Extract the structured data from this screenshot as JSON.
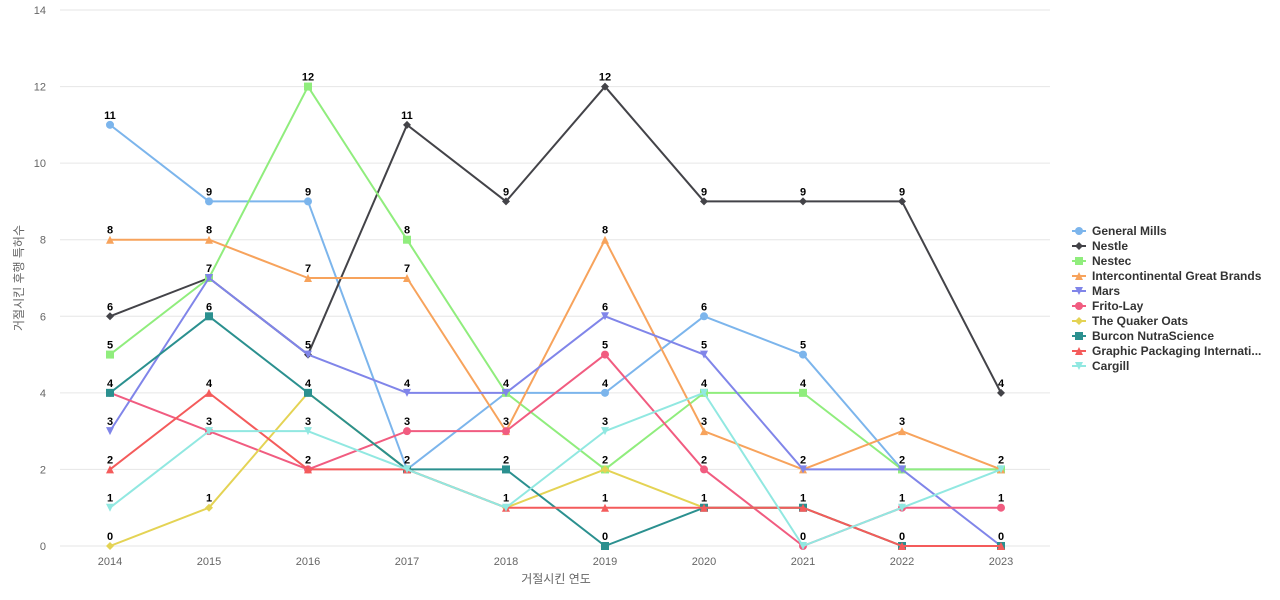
{
  "chart_data": {
    "type": "line",
    "title": "",
    "xlabel": "거절시킨 연도",
    "ylabel": "거절시킨 후행 특허수",
    "ylim": [
      0,
      14
    ],
    "y_ticks": [
      0,
      2,
      4,
      6,
      8,
      10,
      12,
      14
    ],
    "grid": true,
    "legend_position": "right",
    "x": [
      "2014",
      "2015",
      "2016",
      "2017",
      "2018",
      "2019",
      "2020",
      "2021",
      "2022",
      "2023"
    ],
    "series": [
      {
        "name": "General Mills",
        "color": "#7cb5ec",
        "marker": "circle",
        "values": [
          11,
          9,
          9,
          2,
          4,
          4,
          6,
          5,
          2,
          2
        ]
      },
      {
        "name": "Nestle",
        "color": "#434348",
        "marker": "diamond",
        "values": [
          6,
          7,
          5,
          11,
          9,
          12,
          9,
          9,
          9,
          4
        ]
      },
      {
        "name": "Nestec",
        "color": "#90ed7d",
        "marker": "square",
        "values": [
          5,
          7,
          12,
          8,
          4,
          2,
          4,
          4,
          2,
          2
        ]
      },
      {
        "name": "Intercontinental Great Brands",
        "color": "#f7a35c",
        "marker": "triangle",
        "values": [
          8,
          8,
          7,
          7,
          3,
          8,
          3,
          2,
          3,
          2
        ]
      },
      {
        "name": "Mars",
        "color": "#8085e9",
        "marker": "triangle-down",
        "values": [
          3,
          7,
          5,
          4,
          4,
          6,
          5,
          2,
          2,
          0
        ]
      },
      {
        "name": "Frito-Lay",
        "color": "#f15c80",
        "marker": "circle",
        "values": [
          4,
          3,
          2,
          3,
          3,
          5,
          2,
          0,
          1,
          1
        ]
      },
      {
        "name": "The Quaker Oats",
        "color": "#e4d354",
        "marker": "diamond",
        "values": [
          0,
          1,
          4,
          2,
          1,
          2,
          1,
          1,
          0,
          0
        ]
      },
      {
        "name": "Burcon NutraScience",
        "color": "#2b908f",
        "marker": "square",
        "values": [
          4,
          6,
          4,
          2,
          2,
          0,
          1,
          1,
          0,
          0
        ]
      },
      {
        "name": "Graphic Packaging Internati...",
        "color": "#f45b5b",
        "marker": "triangle",
        "values": [
          2,
          4,
          2,
          2,
          1,
          1,
          1,
          1,
          0,
          0
        ]
      },
      {
        "name": "Cargill",
        "color": "#91e8e1",
        "marker": "triangle-down",
        "values": [
          1,
          3,
          3,
          2,
          1,
          3,
          4,
          0,
          1,
          2
        ]
      }
    ],
    "data_labels": [
      {
        "x": "2014",
        "value": 11,
        "label": "11"
      },
      {
        "x": "2014",
        "value": 8,
        "label": "8"
      },
      {
        "x": "2014",
        "value": 6,
        "label": "6"
      },
      {
        "x": "2014",
        "value": 5,
        "label": "5"
      },
      {
        "x": "2014",
        "value": 4,
        "label": "4"
      },
      {
        "x": "2014",
        "value": 3,
        "label": "3"
      },
      {
        "x": "2014",
        "value": 2,
        "label": "2"
      },
      {
        "x": "2014",
        "value": 1,
        "label": "1"
      },
      {
        "x": "2014",
        "value": 0,
        "label": "0"
      },
      {
        "x": "2015",
        "value": 9,
        "label": "9"
      },
      {
        "x": "2015",
        "value": 8,
        "label": "8"
      },
      {
        "x": "2015",
        "value": 7,
        "label": "7"
      },
      {
        "x": "2015",
        "value": 6,
        "label": "6"
      },
      {
        "x": "2015",
        "value": 4,
        "label": "4"
      },
      {
        "x": "2015",
        "value": 3,
        "label": "3"
      },
      {
        "x": "2015",
        "value": 1,
        "label": "1"
      },
      {
        "x": "2016",
        "value": 12,
        "label": "12"
      },
      {
        "x": "2016",
        "value": 9,
        "label": "9"
      },
      {
        "x": "2016",
        "value": 7,
        "label": "7"
      },
      {
        "x": "2016",
        "value": 5,
        "label": "5"
      },
      {
        "x": "2016",
        "value": 4,
        "label": "4"
      },
      {
        "x": "2016",
        "value": 3,
        "label": "3"
      },
      {
        "x": "2016",
        "value": 2,
        "label": "2"
      },
      {
        "x": "2017",
        "value": 11,
        "label": "11"
      },
      {
        "x": "2017",
        "value": 8,
        "label": "8"
      },
      {
        "x": "2017",
        "value": 7,
        "label": "7"
      },
      {
        "x": "2017",
        "value": 4,
        "label": "4"
      },
      {
        "x": "2017",
        "value": 3,
        "label": "3"
      },
      {
        "x": "2017",
        "value": 2,
        "label": "2"
      },
      {
        "x": "2018",
        "value": 9,
        "label": "9"
      },
      {
        "x": "2018",
        "value": 4,
        "label": "4"
      },
      {
        "x": "2018",
        "value": 3,
        "label": "3"
      },
      {
        "x": "2018",
        "value": 2,
        "label": "2"
      },
      {
        "x": "2018",
        "value": 1,
        "label": "1"
      },
      {
        "x": "2019",
        "value": 12,
        "label": "12"
      },
      {
        "x": "2019",
        "value": 8,
        "label": "8"
      },
      {
        "x": "2019",
        "value": 6,
        "label": "6"
      },
      {
        "x": "2019",
        "value": 5,
        "label": "5"
      },
      {
        "x": "2019",
        "value": 4,
        "label": "4"
      },
      {
        "x": "2019",
        "value": 3,
        "label": "3"
      },
      {
        "x": "2019",
        "value": 2,
        "label": "2"
      },
      {
        "x": "2019",
        "value": 1,
        "label": "1"
      },
      {
        "x": "2019",
        "value": 0,
        "label": "0"
      },
      {
        "x": "2020",
        "value": 9,
        "label": "9"
      },
      {
        "x": "2020",
        "value": 6,
        "label": "6"
      },
      {
        "x": "2020",
        "value": 5,
        "label": "5"
      },
      {
        "x": "2020",
        "value": 4,
        "label": "4"
      },
      {
        "x": "2020",
        "value": 3,
        "label": "3"
      },
      {
        "x": "2020",
        "value": 2,
        "label": "2"
      },
      {
        "x": "2020",
        "value": 1,
        "label": "1"
      },
      {
        "x": "2021",
        "value": 9,
        "label": "9"
      },
      {
        "x": "2021",
        "value": 5,
        "label": "5"
      },
      {
        "x": "2021",
        "value": 4,
        "label": "4"
      },
      {
        "x": "2021",
        "value": 2,
        "label": "2"
      },
      {
        "x": "2021",
        "value": 1,
        "label": "1"
      },
      {
        "x": "2021",
        "value": 0,
        "label": "0"
      },
      {
        "x": "2022",
        "value": 9,
        "label": "9"
      },
      {
        "x": "2022",
        "value": 3,
        "label": "3"
      },
      {
        "x": "2022",
        "value": 2,
        "label": "2"
      },
      {
        "x": "2022",
        "value": 1,
        "label": "1"
      },
      {
        "x": "2022",
        "value": 0,
        "label": "0"
      },
      {
        "x": "2023",
        "value": 4,
        "label": "4"
      },
      {
        "x": "2023",
        "value": 2,
        "label": "2"
      },
      {
        "x": "2023",
        "value": 1,
        "label": "1"
      },
      {
        "x": "2023",
        "value": 0,
        "label": "0"
      }
    ]
  }
}
